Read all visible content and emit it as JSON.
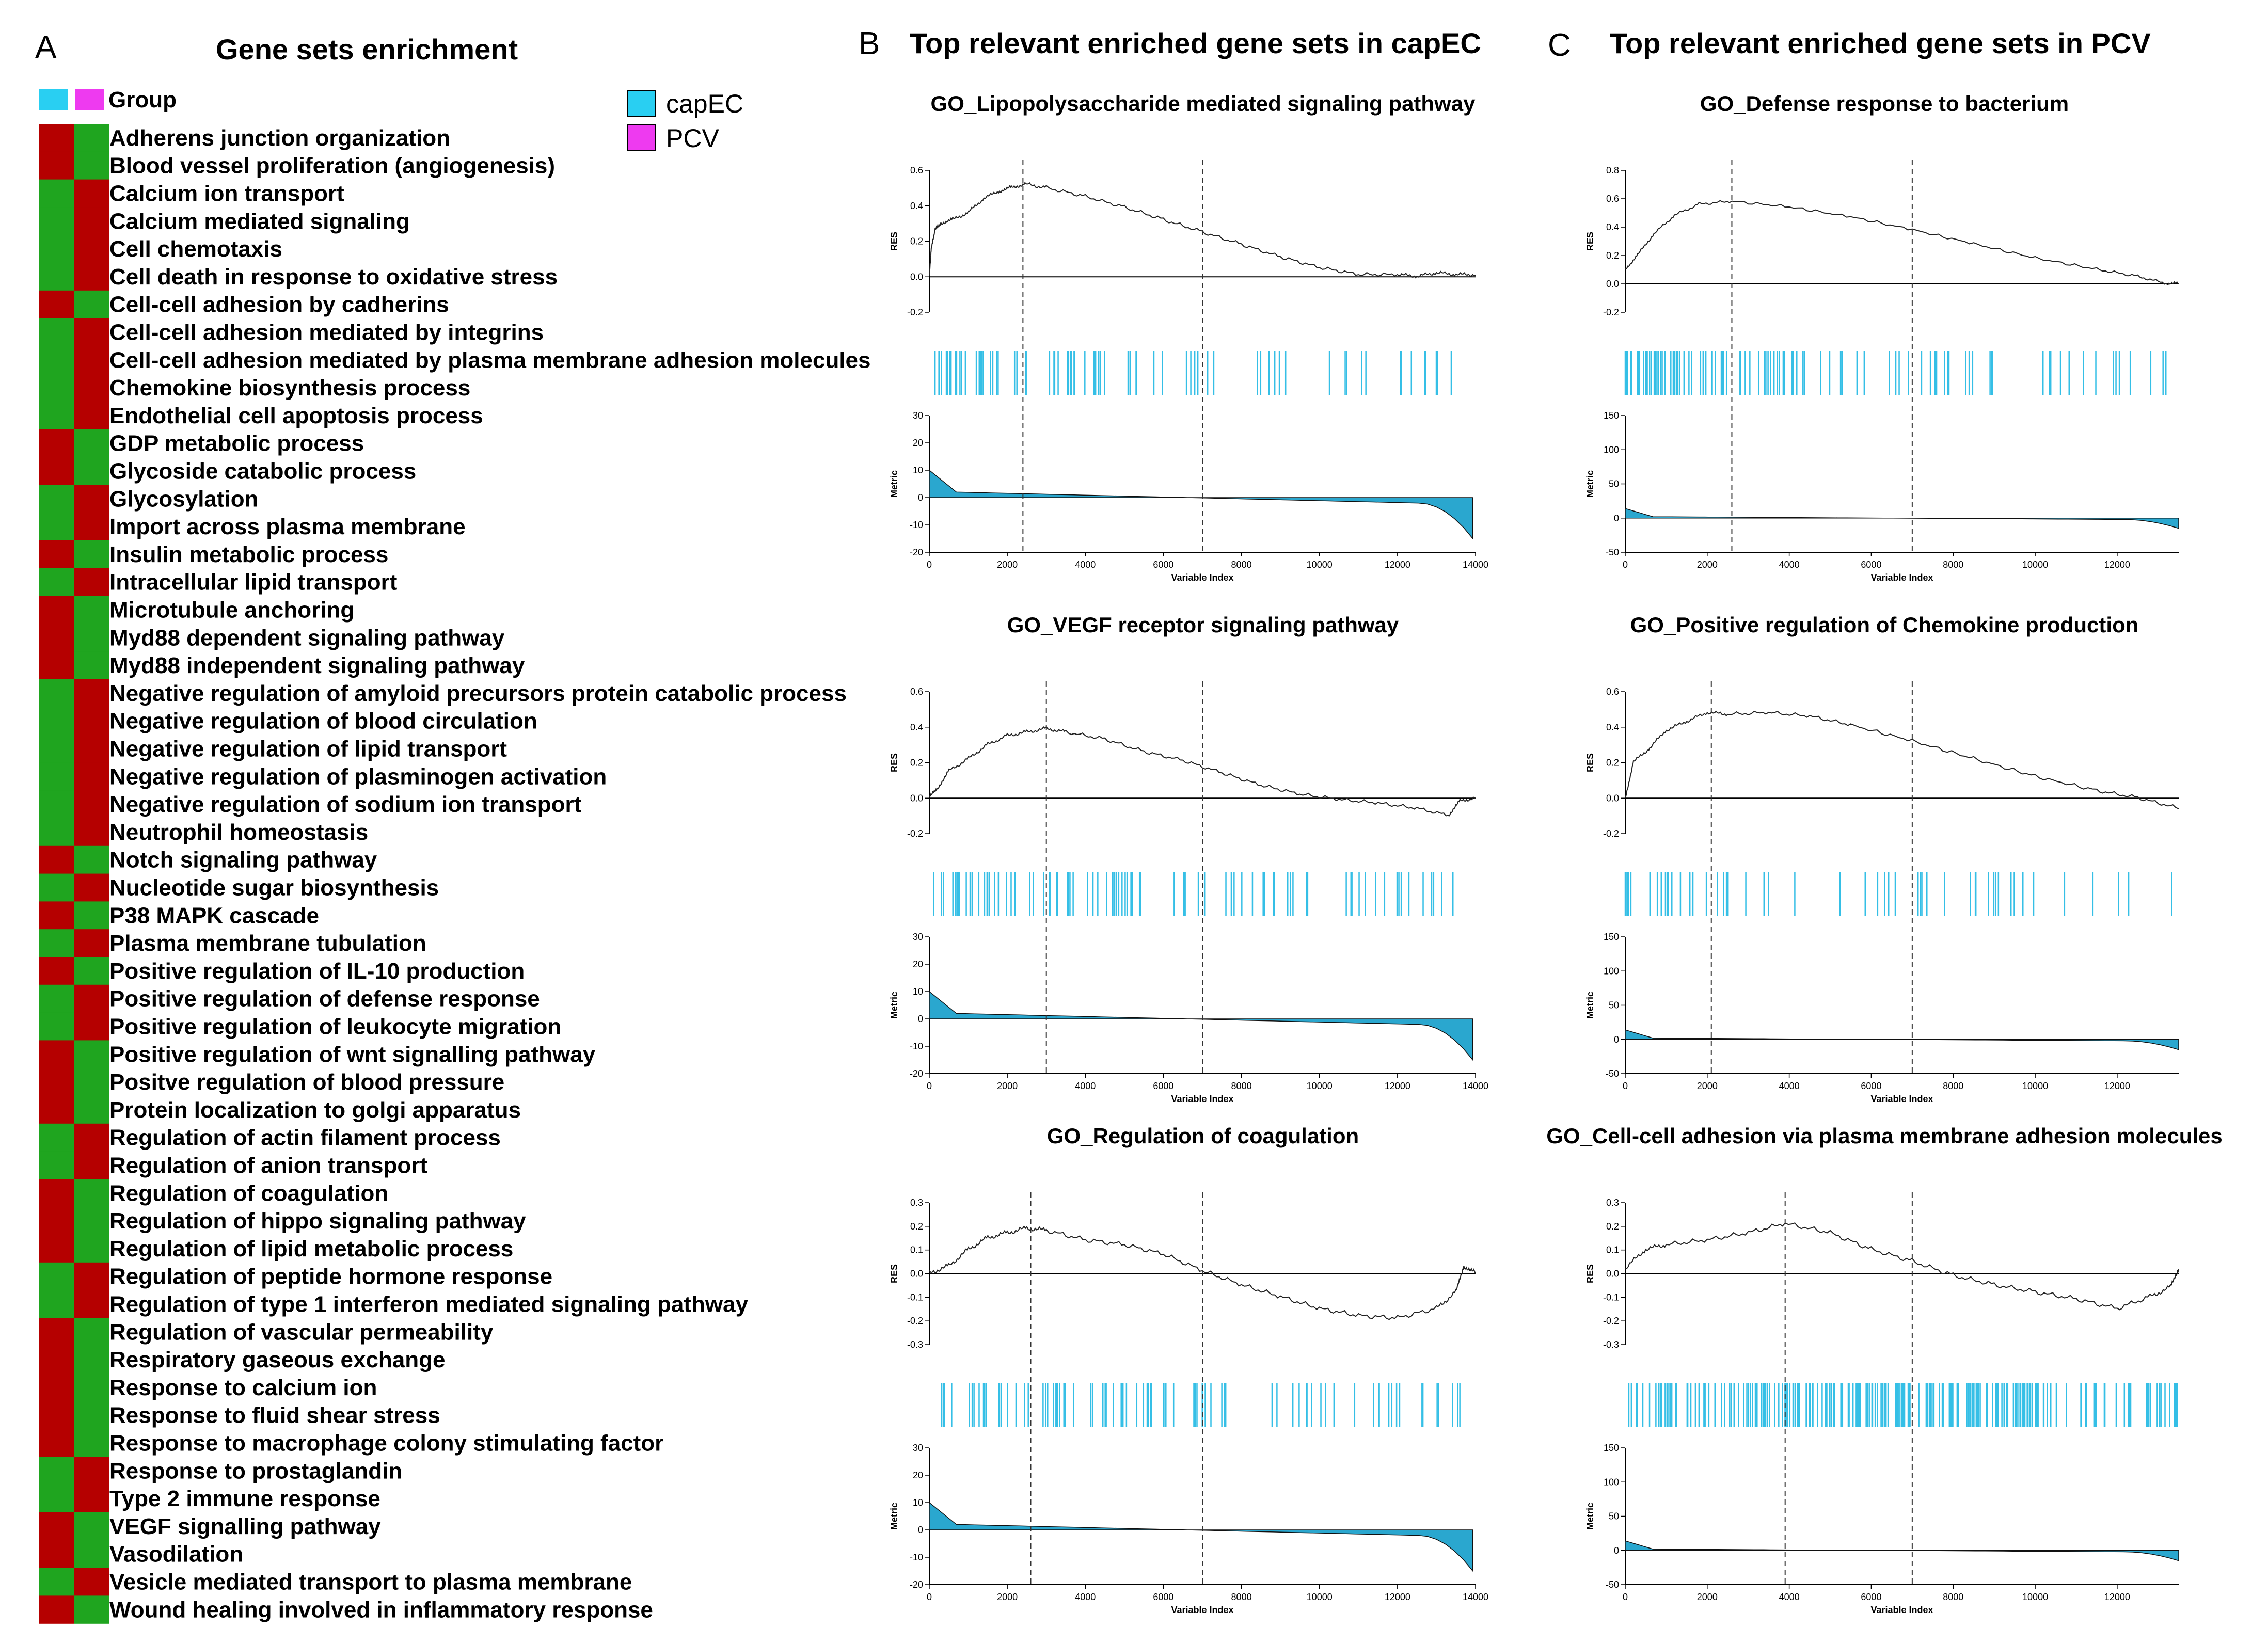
{
  "colors": {
    "high": "#b50000",
    "low": "#1fa51f",
    "capEC": "#29cff2",
    "PCV": "#ee3af0",
    "hit": "#35bfe6",
    "fill": "#2aa7cf"
  },
  "panels": {
    "A": {
      "letter": "A",
      "title": "Gene sets enrichment"
    },
    "B": {
      "letter": "B",
      "title": "Top relevant enriched gene sets in capEC"
    },
    "C": {
      "letter": "C",
      "title": "Top relevant enriched gene sets in PCV"
    }
  },
  "legend": {
    "capEC": "capEC",
    "PCV": "PCV",
    "group_label": "Group"
  },
  "heatmap": {
    "columns": [
      "capEC",
      "PCV"
    ],
    "rows": [
      {
        "label": "Adherens junction organization",
        "capEC": "high"
      },
      {
        "label": "Blood vessel proliferation (angiogenesis)",
        "capEC": "high"
      },
      {
        "label": "Calcium ion transport",
        "capEC": "low"
      },
      {
        "label": "Calcium mediated signaling",
        "capEC": "low"
      },
      {
        "label": "Cell chemotaxis",
        "capEC": "low"
      },
      {
        "label": "Cell death in response to oxidative stress",
        "capEC": "low"
      },
      {
        "label": "Cell-cell adhesion by cadherins",
        "capEC": "high"
      },
      {
        "label": "Cell-cell adhesion mediated by integrins",
        "capEC": "low"
      },
      {
        "label": "Cell-cell adhesion mediated by plasma membrane adhesion molecules",
        "capEC": "low"
      },
      {
        "label": "Chemokine biosynthesis process",
        "capEC": "low"
      },
      {
        "label": "Endothelial cell apoptosis process",
        "capEC": "low"
      },
      {
        "label": "GDP metabolic process",
        "capEC": "high"
      },
      {
        "label": "Glycoside catabolic process",
        "capEC": "high"
      },
      {
        "label": "Glycosylation",
        "capEC": "low"
      },
      {
        "label": "Import across plasma membrane",
        "capEC": "low"
      },
      {
        "label": "Insulin metabolic process",
        "capEC": "high"
      },
      {
        "label": "Intracellular lipid transport",
        "capEC": "low"
      },
      {
        "label": "Microtubule anchoring",
        "capEC": "high"
      },
      {
        "label": "Myd88 dependent signaling pathway",
        "capEC": "high"
      },
      {
        "label": "Myd88 independent signaling pathway",
        "capEC": "high"
      },
      {
        "label": "Negative regulation of amyloid precursors protein catabolic process",
        "capEC": "low"
      },
      {
        "label": "Negative regulation of blood circulation",
        "capEC": "low"
      },
      {
        "label": "Negative regulation of lipid transport",
        "capEC": "low"
      },
      {
        "label": "Negative regulation of plasminogen activation",
        "capEC": "low"
      },
      {
        "label": "Negative regulation of sodium ion transport",
        "capEC": "low"
      },
      {
        "label": "Neutrophil homeostasis",
        "capEC": "low"
      },
      {
        "label": "Notch signaling pathway",
        "capEC": "high"
      },
      {
        "label": "Nucleotide sugar biosynthesis",
        "capEC": "low"
      },
      {
        "label": "P38 MAPK cascade",
        "capEC": "high"
      },
      {
        "label": "Plasma membrane tubulation",
        "capEC": "low"
      },
      {
        "label": "Positive regulation of IL-10 production",
        "capEC": "high"
      },
      {
        "label": "Positive regulation of defense response",
        "capEC": "low"
      },
      {
        "label": "Positive regulation of leukocyte migration",
        "capEC": "low"
      },
      {
        "label": "Positive regulation of wnt signalling pathway",
        "capEC": "high"
      },
      {
        "label": "Positve regulation of blood pressure",
        "capEC": "high"
      },
      {
        "label": "Protein localization to golgi apparatus",
        "capEC": "high"
      },
      {
        "label": "Regulation of actin filament process",
        "capEC": "low"
      },
      {
        "label": "Regulation of anion transport",
        "capEC": "low"
      },
      {
        "label": "Regulation of coagulation",
        "capEC": "high"
      },
      {
        "label": "Regulation of hippo signaling pathway",
        "capEC": "high"
      },
      {
        "label": "Regulation of lipid metabolic process",
        "capEC": "high"
      },
      {
        "label": "Regulation of peptide hormone response",
        "capEC": "low"
      },
      {
        "label": "Regulation of type 1 interferon mediated signaling pathway",
        "capEC": "low"
      },
      {
        "label": "Regulation of vascular permeability",
        "capEC": "high"
      },
      {
        "label": "Respiratory gaseous exchange",
        "capEC": "high"
      },
      {
        "label": "Response to calcium ion",
        "capEC": "high"
      },
      {
        "label": "Response to fluid shear stress",
        "capEC": "high"
      },
      {
        "label": "Response to macrophage colony stimulating factor",
        "capEC": "high"
      },
      {
        "label": "Response to prostaglandin",
        "capEC": "low"
      },
      {
        "label": "Type 2 immune response",
        "capEC": "low"
      },
      {
        "label": "VEGF signalling pathway",
        "capEC": "high"
      },
      {
        "label": "Vasodilation",
        "capEC": "high"
      },
      {
        "label": "Vesicle mediated transport to plasma membrane",
        "capEC": "low"
      },
      {
        "label": "Wound healing involved in inflammatory response",
        "capEC": "high"
      }
    ]
  },
  "chart_data": [
    {
      "type": "line",
      "panel": "B",
      "title": "GO_Lipopolysaccharide mediated signaling pathway",
      "ylabel": "RES",
      "y_ticks": [
        "0.6",
        "0.4",
        "0.2",
        "0.0",
        "-0.2"
      ],
      "ylim": [
        -0.2,
        0.6
      ],
      "res": [
        [
          0,
          0
        ],
        [
          50,
          0.15
        ],
        [
          150,
          0.26
        ],
        [
          300,
          0.3
        ],
        [
          600,
          0.32
        ],
        [
          1000,
          0.36
        ],
        [
          1400,
          0.44
        ],
        [
          1800,
          0.48
        ],
        [
          2100,
          0.5
        ],
        [
          2450,
          0.52
        ],
        [
          3000,
          0.5
        ],
        [
          4000,
          0.45
        ],
        [
          5000,
          0.39
        ],
        [
          6000,
          0.32
        ],
        [
          7000,
          0.25
        ],
        [
          8000,
          0.18
        ],
        [
          9000,
          0.11
        ],
        [
          10000,
          0.05
        ],
        [
          11000,
          0.01
        ],
        [
          12000,
          0.01
        ],
        [
          12500,
          0.0
        ],
        [
          13000,
          0.02
        ],
        [
          13500,
          0.01
        ],
        [
          14000,
          0.01
        ]
      ],
      "dashed": [
        2400,
        7000
      ],
      "hits": {
        "start": 50,
        "end": 13700,
        "count": 80,
        "density": 3.0
      },
      "metric_ylabel": "Metric",
      "metric_ticks": [
        "30",
        "20",
        "10",
        "0",
        "-10",
        "-20"
      ],
      "metric_ylim": [
        -20,
        30
      ],
      "metric_start": 10,
      "metric_end": -15,
      "xlabel": "Variable Index",
      "x_ticks": [
        "0",
        "2000",
        "4000",
        "6000",
        "8000",
        "10000",
        "12000",
        "14000"
      ],
      "xlim": [
        0,
        14000
      ]
    },
    {
      "type": "line",
      "panel": "B",
      "title": "GO_VEGF receptor signaling pathway",
      "ylabel": "RES",
      "y_ticks": [
        "0.6",
        "0.4",
        "0.2",
        "0.0",
        "-0.2"
      ],
      "ylim": [
        -0.2,
        0.6
      ],
      "res": [
        [
          0,
          0
        ],
        [
          200,
          0.05
        ],
        [
          500,
          0.15
        ],
        [
          1000,
          0.22
        ],
        [
          1500,
          0.3
        ],
        [
          2000,
          0.35
        ],
        [
          2500,
          0.37
        ],
        [
          3000,
          0.39
        ],
        [
          3500,
          0.37
        ],
        [
          4500,
          0.33
        ],
        [
          5500,
          0.26
        ],
        [
          6500,
          0.21
        ],
        [
          7500,
          0.14
        ],
        [
          8500,
          0.07
        ],
        [
          9500,
          0.02
        ],
        [
          10500,
          -0.01
        ],
        [
          11500,
          -0.03
        ],
        [
          12500,
          -0.06
        ],
        [
          13300,
          -0.1
        ],
        [
          13600,
          -0.02
        ],
        [
          14000,
          0.0
        ]
      ],
      "dashed": [
        3000,
        7000
      ],
      "hits": {
        "start": 50,
        "end": 13700,
        "count": 90,
        "density": 2.5
      },
      "metric_ylabel": "Metric",
      "metric_ticks": [
        "30",
        "20",
        "10",
        "0",
        "-10",
        "-20"
      ],
      "metric_ylim": [
        -20,
        30
      ],
      "metric_start": 10,
      "metric_end": -15,
      "xlabel": "Variable Index",
      "x_ticks": [
        "0",
        "2000",
        "4000",
        "6000",
        "8000",
        "10000",
        "12000",
        "14000"
      ],
      "xlim": [
        0,
        14000
      ]
    },
    {
      "type": "line",
      "panel": "B",
      "title": "GO_Regulation of coagulation",
      "ylabel": "RES",
      "y_ticks": [
        "0.3",
        "0.2",
        "0.1",
        "0.0",
        "-0.1",
        "-0.2",
        "-0.3"
      ],
      "ylim": [
        -0.3,
        0.3
      ],
      "res": [
        [
          0,
          0
        ],
        [
          500,
          0.03
        ],
        [
          1000,
          0.1
        ],
        [
          1500,
          0.15
        ],
        [
          2000,
          0.17
        ],
        [
          2500,
          0.19
        ],
        [
          3000,
          0.18
        ],
        [
          4000,
          0.14
        ],
        [
          5000,
          0.12
        ],
        [
          6000,
          0.08
        ],
        [
          7000,
          0.01
        ],
        [
          8000,
          -0.05
        ],
        [
          9000,
          -0.1
        ],
        [
          10000,
          -0.15
        ],
        [
          11000,
          -0.18
        ],
        [
          12000,
          -0.19
        ],
        [
          13000,
          -0.15
        ],
        [
          13500,
          -0.08
        ],
        [
          13700,
          0.03
        ],
        [
          14000,
          0.0
        ]
      ],
      "dashed": [
        2600,
        7000
      ],
      "hits": {
        "start": 200,
        "end": 13600,
        "count": 85,
        "density": 2.0
      },
      "metric_ylabel": "Metric",
      "metric_ticks": [
        "30",
        "20",
        "10",
        "0",
        "-10",
        "-20"
      ],
      "metric_ylim": [
        -20,
        30
      ],
      "metric_start": 10,
      "metric_end": -15,
      "xlabel": "Variable Index",
      "x_ticks": [
        "0",
        "2000",
        "4000",
        "6000",
        "8000",
        "10000",
        "12000",
        "14000"
      ],
      "xlim": [
        0,
        14000
      ]
    },
    {
      "type": "line",
      "panel": "C",
      "title": "GO_Defense response to bacterium",
      "ylabel": "RES",
      "y_ticks": [
        "0.8",
        "0.6",
        "0.4",
        "0.2",
        "0.0",
        "-0.2"
      ],
      "ylim": [
        -0.2,
        0.8
      ],
      "res": [
        [
          0,
          0.1
        ],
        [
          300,
          0.2
        ],
        [
          700,
          0.35
        ],
        [
          1200,
          0.48
        ],
        [
          1800,
          0.56
        ],
        [
          2600,
          0.58
        ],
        [
          4000,
          0.54
        ],
        [
          5500,
          0.47
        ],
        [
          7000,
          0.38
        ],
        [
          8500,
          0.28
        ],
        [
          10000,
          0.18
        ],
        [
          11500,
          0.1
        ],
        [
          12500,
          0.05
        ],
        [
          13200,
          0.0
        ],
        [
          13500,
          0.0
        ]
      ],
      "dashed": [
        2600,
        7000
      ],
      "hits": {
        "start": 0,
        "end": 13400,
        "count": 110,
        "density": 3.5
      },
      "metric_ylabel": "Metric",
      "metric_ticks": [
        "150",
        "100",
        "50",
        "0",
        "-50"
      ],
      "metric_ylim": [
        -50,
        150
      ],
      "metric_start": 15,
      "metric_end": -15,
      "xlabel": "Variable Index",
      "x_ticks": [
        "0",
        "2000",
        "4000",
        "6000",
        "8000",
        "10000",
        "12000"
      ],
      "xlim": [
        0,
        13500
      ]
    },
    {
      "type": "line",
      "panel": "C",
      "title": "GO_Positive regulation of Chemokine production",
      "ylabel": "RES",
      "y_ticks": [
        "0.6",
        "0.4",
        "0.2",
        "0.0",
        "-0.2"
      ],
      "ylim": [
        -0.2,
        0.6
      ],
      "res": [
        [
          0,
          0
        ],
        [
          200,
          0.2
        ],
        [
          600,
          0.28
        ],
        [
          1000,
          0.38
        ],
        [
          1500,
          0.43
        ],
        [
          2000,
          0.48
        ],
        [
          2500,
          0.47
        ],
        [
          3500,
          0.48
        ],
        [
          4500,
          0.46
        ],
        [
          5500,
          0.41
        ],
        [
          7000,
          0.32
        ],
        [
          8500,
          0.22
        ],
        [
          10000,
          0.12
        ],
        [
          11500,
          0.04
        ],
        [
          12500,
          0.0
        ],
        [
          13500,
          -0.06
        ]
      ],
      "dashed": [
        2100,
        7000
      ],
      "hits": {
        "start": 0,
        "end": 13400,
        "count": 55,
        "density": 3.0
      },
      "metric_ylabel": "Metric",
      "metric_ticks": [
        "150",
        "100",
        "50",
        "0",
        "-50"
      ],
      "metric_ylim": [
        -50,
        150
      ],
      "metric_start": 15,
      "metric_end": -15,
      "xlabel": "Variable Index",
      "x_ticks": [
        "0",
        "2000",
        "4000",
        "6000",
        "8000",
        "10000",
        "12000"
      ],
      "xlim": [
        0,
        13500
      ]
    },
    {
      "type": "line",
      "panel": "C",
      "title": "GO_Cell-cell adhesion via plasma membrane adhesion molecules",
      "ylabel": "RES",
      "y_ticks": [
        "0.3",
        "0.2",
        "0.1",
        "0.0",
        "-0.1",
        "-0.2",
        "-0.3"
      ],
      "ylim": [
        -0.3,
        0.3
      ],
      "res": [
        [
          0,
          0.02
        ],
        [
          500,
          0.1
        ],
        [
          1000,
          0.12
        ],
        [
          2000,
          0.14
        ],
        [
          3000,
          0.17
        ],
        [
          3900,
          0.21
        ],
        [
          5000,
          0.17
        ],
        [
          6000,
          0.1
        ],
        [
          7000,
          0.05
        ],
        [
          8000,
          -0.01
        ],
        [
          9000,
          -0.05
        ],
        [
          10000,
          -0.08
        ],
        [
          11000,
          -0.11
        ],
        [
          12000,
          -0.15
        ],
        [
          12800,
          -0.1
        ],
        [
          13300,
          -0.06
        ],
        [
          13500,
          0.02
        ]
      ],
      "dashed": [
        3900,
        7000
      ],
      "hits": {
        "start": 0,
        "end": 13500,
        "count": 220,
        "density": 1.2
      },
      "metric_ylabel": "Metric",
      "metric_ticks": [
        "150",
        "100",
        "50",
        "0",
        "-50"
      ],
      "metric_ylim": [
        -50,
        150
      ],
      "metric_start": 15,
      "metric_end": -15,
      "xlabel": "Variable Index",
      "x_ticks": [
        "0",
        "2000",
        "4000",
        "6000",
        "8000",
        "10000",
        "12000"
      ],
      "xlim": [
        0,
        13500
      ]
    }
  ]
}
